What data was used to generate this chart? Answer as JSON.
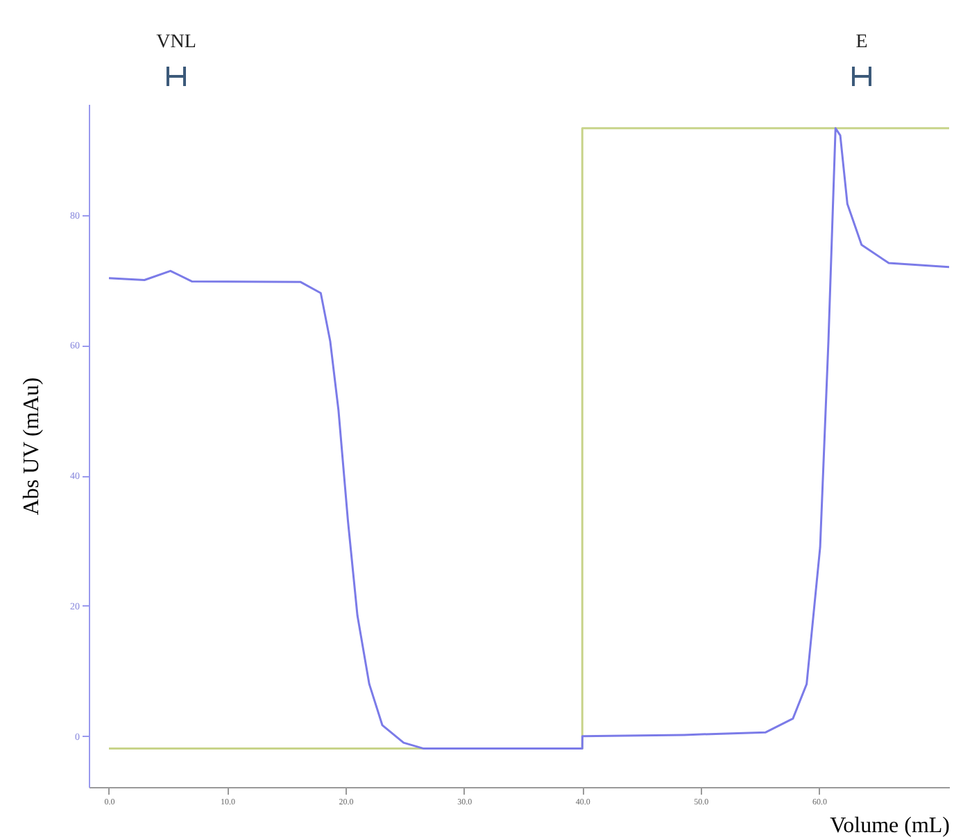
{
  "chart_data": {
    "type": "line",
    "xlabel": "Volume (mL)",
    "ylabel": "Abs UV (mAu)",
    "xlim": [
      -1.7,
      71
    ],
    "xticks": [
      {
        "value": 0,
        "label": "0.0"
      },
      {
        "value": 10,
        "label": "10.0"
      },
      {
        "value": 20,
        "label": "20.0"
      },
      {
        "value": 30,
        "label": "30.0"
      },
      {
        "value": 40,
        "label": "40.0"
      },
      {
        "value": 50,
        "label": "50.0"
      },
      {
        "value": 60,
        "label": "60.0"
      }
    ],
    "ylim": [
      -7.8,
      97
    ],
    "yticks": [
      0,
      20,
      40,
      60,
      80
    ],
    "grid": false,
    "legend": false,
    "marker": "none",
    "line_style": "solid",
    "series": [
      {
        "type": "line",
        "color": "#7b7be8",
        "x": [
          0,
          3,
          5.2,
          7,
          16.2,
          17.9,
          18.7,
          19.4,
          20.2,
          21,
          22,
          23.1,
          24.9,
          26.6,
          40,
          40.01,
          48.6,
          55.5,
          57.8,
          58.96,
          60.1,
          60.8,
          61.4,
          61.8,
          62.4,
          63.6,
          65.9,
          71
        ],
        "values": [
          70.3,
          70,
          71.4,
          69.8,
          69.7,
          68,
          60.6,
          50,
          33,
          18.5,
          8,
          1.7,
          -1,
          -1.9,
          -1.9,
          0,
          0.2,
          0.6,
          2.7,
          8,
          29,
          60.6,
          93.3,
          92.2,
          81.7,
          75.4,
          72.6,
          72
        ]
      },
      {
        "type": "step",
        "color": "#c8d48a",
        "x": [
          0,
          40,
          71
        ],
        "values": [
          -1.9,
          93.3,
          93.3
        ]
      }
    ],
    "annotations": [
      "VNL",
      "E"
    ]
  }
}
